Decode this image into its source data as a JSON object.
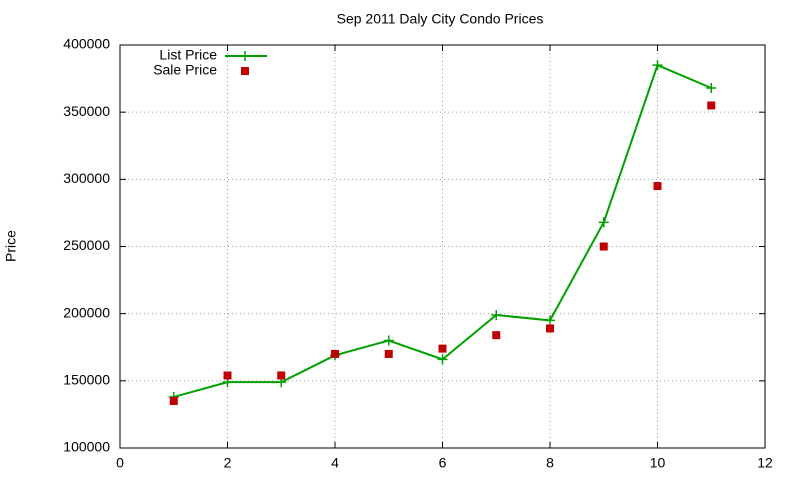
{
  "chart_data": {
    "type": "line",
    "title": "Sep 2011 Daly City Condo Prices",
    "y_label": "Price",
    "x": [
      1,
      2,
      3,
      4,
      5,
      6,
      7,
      8,
      9,
      10,
      11
    ],
    "series": [
      {
        "name": "List Price",
        "color": "#00a000",
        "style": "linespoints",
        "values": [
          138000,
          149000,
          149000,
          169000,
          180000,
          166000,
          199000,
          195000,
          268000,
          385000,
          368000
        ]
      },
      {
        "name": "Sale Price",
        "color": "#c00000",
        "style": "points",
        "values": [
          135000,
          154000,
          154000,
          170000,
          170000,
          174000,
          184000,
          189000,
          250000,
          295000,
          355000
        ]
      }
    ],
    "xlim": [
      0,
      12
    ],
    "xticks": [
      0,
      2,
      4,
      6,
      8,
      10,
      12
    ],
    "ylim": [
      100000,
      400000
    ],
    "yticks": [
      100000,
      150000,
      200000,
      250000,
      300000,
      350000,
      400000
    ],
    "grid": true,
    "legend": "top-left"
  }
}
